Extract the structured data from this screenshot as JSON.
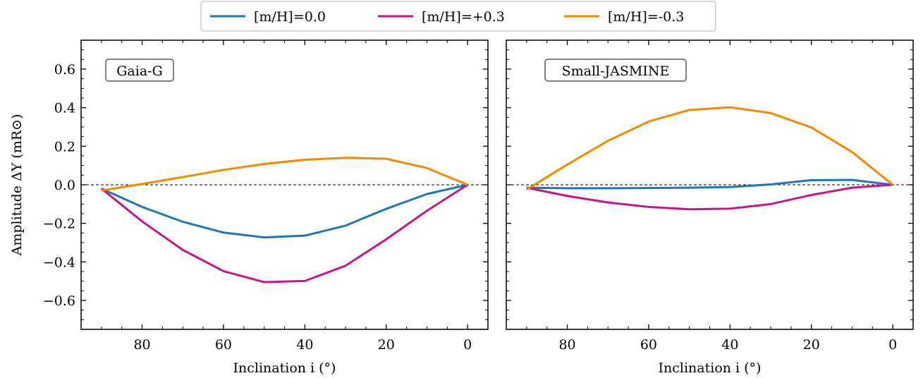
{
  "legend": {
    "location": "top-center",
    "entries": [
      {
        "label": "[m/H]=0.0",
        "color": "#1f77b4"
      },
      {
        "label": "[m/H]=+0.3",
        "color": "#c5168b"
      },
      {
        "label": "[m/H]=-0.3",
        "color": "#f28a00"
      }
    ]
  },
  "chart_data": [
    {
      "type": "line",
      "panel_label": "Gaia-G",
      "xlabel": "Inclination i (°)",
      "ylabel": "Amplitude ΔY (mR⊙)",
      "xlim": [
        95,
        -5
      ],
      "ylim": [
        -0.75,
        0.75
      ],
      "xticks": [
        80,
        60,
        40,
        20,
        0
      ],
      "yticks": [
        0.6,
        0.4,
        0.2,
        0.0,
        -0.2,
        -0.4,
        -0.6
      ],
      "xtick_labels": [
        "80",
        "60",
        "40",
        "20",
        "0"
      ],
      "ytick_labels": [
        "0.6",
        "0.4",
        "0.2",
        "0.0",
        "−0.2",
        "−0.4",
        "−0.6"
      ],
      "reference_line": {
        "y": 0,
        "style": "dashed"
      },
      "x": [
        90,
        80,
        70,
        60,
        50,
        40,
        30,
        20,
        10,
        0
      ],
      "series": [
        {
          "name": "[m/H]=0.0",
          "color": "#1f77b4",
          "values": [
            -0.02,
            -0.115,
            -0.192,
            -0.248,
            -0.273,
            -0.264,
            -0.212,
            -0.125,
            -0.048,
            0.0
          ]
        },
        {
          "name": "[m/H]=+0.3",
          "color": "#c5168b",
          "values": [
            -0.02,
            -0.19,
            -0.338,
            -0.448,
            -0.505,
            -0.499,
            -0.42,
            -0.283,
            -0.135,
            0.0
          ]
        },
        {
          "name": "[m/H]=-0.3",
          "color": "#f28a00",
          "values": [
            -0.03,
            0.004,
            0.04,
            0.077,
            0.108,
            0.13,
            0.14,
            0.135,
            0.087,
            0.0
          ]
        }
      ]
    },
    {
      "type": "line",
      "panel_label": "Small-JASMINE",
      "xlabel": "Inclination i (°)",
      "ylabel": "",
      "xlim": [
        95,
        -5
      ],
      "ylim": [
        -0.75,
        0.75
      ],
      "xticks": [
        80,
        60,
        40,
        20,
        0
      ],
      "yticks": [
        0.6,
        0.4,
        0.2,
        0.0,
        -0.2,
        -0.4,
        -0.6
      ],
      "xtick_labels": [
        "80",
        "60",
        "40",
        "20",
        "0"
      ],
      "ytick_labels": [],
      "reference_line": {
        "y": 0,
        "style": "dashed"
      },
      "x": [
        90,
        80,
        70,
        60,
        50,
        40,
        30,
        20,
        10,
        0
      ],
      "series": [
        {
          "name": "[m/H]=0.0",
          "color": "#1f77b4",
          "values": [
            -0.015,
            -0.018,
            -0.018,
            -0.017,
            -0.015,
            -0.012,
            0.002,
            0.024,
            0.025,
            0.0
          ]
        },
        {
          "name": "[m/H]=+0.3",
          "color": "#c5168b",
          "values": [
            -0.015,
            -0.058,
            -0.092,
            -0.115,
            -0.127,
            -0.124,
            -0.1,
            -0.053,
            -0.015,
            0.0
          ]
        },
        {
          "name": "[m/H]=-0.3",
          "color": "#f28a00",
          "values": [
            -0.025,
            0.105,
            0.228,
            0.328,
            0.388,
            0.402,
            0.372,
            0.297,
            0.17,
            0.0
          ]
        }
      ]
    }
  ]
}
